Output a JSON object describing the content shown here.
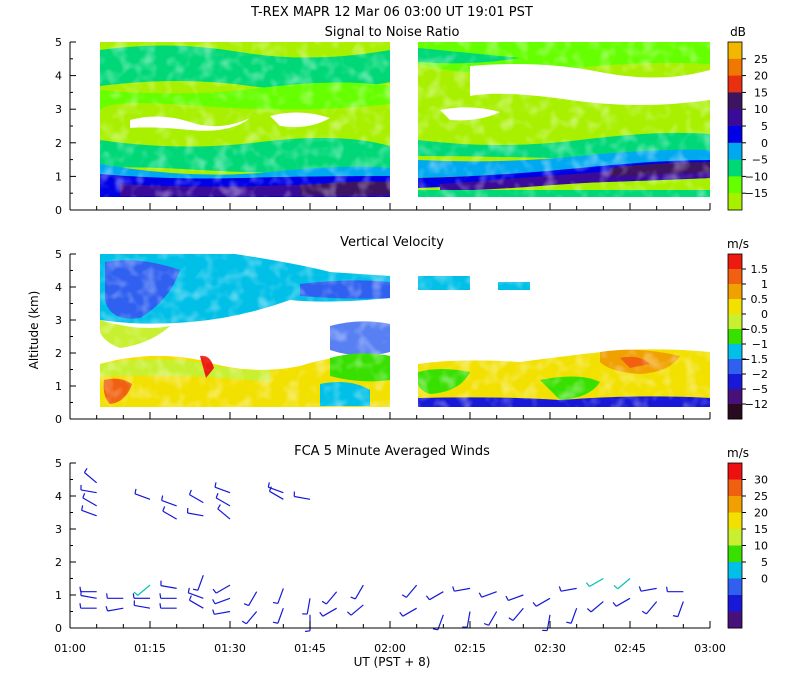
{
  "header": {
    "title_left": "T-REX   MAPR 12 Mar 06   03:00 UT   19:01   PST"
  },
  "x_axis": {
    "label": "UT  (PST + 8)",
    "ticks": [
      "01:00",
      "01:15",
      "01:30",
      "01:45",
      "02:00",
      "02:15",
      "02:30",
      "02:45",
      "03:00"
    ]
  },
  "y_axis": {
    "label": "Altitude (km)",
    "ticks": [
      "0",
      "1",
      "2",
      "3",
      "4",
      "5"
    ]
  },
  "chart_data": [
    {
      "type": "heatmap",
      "title": "Signal to Noise Ratio",
      "unit": "dB",
      "xlabel": "UT  (PST + 8)",
      "ylabel": "Altitude (km)",
      "xlim": [
        "01:00",
        "03:00"
      ],
      "ylim": [
        0,
        5
      ],
      "data_gap": [
        "01:59",
        "02:05"
      ],
      "colorbar": {
        "ticks": [
          "25",
          "20",
          "15",
          "10",
          "5",
          "0",
          "−5",
          "−10",
          "−15"
        ],
        "colors": [
          "#f2b800",
          "#f07800",
          "#e83010",
          "#3c1460",
          "#3a0a9a",
          "#0000e6",
          "#00a8f0",
          "#00d878",
          "#66ff00",
          "#a8f000"
        ]
      },
      "layers": [
        {
          "alt_from": 0.3,
          "alt_to": 0.6,
          "level": "5"
        },
        {
          "alt_from": 0.6,
          "alt_to": 1.2,
          "level": "0"
        },
        {
          "alt_from": 1.2,
          "alt_to": 1.8,
          "level": "−5"
        },
        {
          "alt_from": 1.8,
          "alt_to": 3.3,
          "level": "−10"
        },
        {
          "alt_from": 3.3,
          "alt_to": 5.0,
          "level": "−5"
        }
      ]
    },
    {
      "type": "heatmap",
      "title": "Vertical Velocity",
      "unit": "m/s",
      "xlabel": "UT  (PST + 8)",
      "ylabel": "Altitude (km)",
      "xlim": [
        "01:00",
        "03:00"
      ],
      "ylim": [
        0,
        5
      ],
      "data_gap": [
        "01:59",
        "02:05"
      ],
      "colorbar": {
        "ticks": [
          "1.5",
          "1",
          "0.5",
          "0",
          "−0.5",
          "−1",
          "−1.5",
          "−2",
          "−5",
          "−12"
        ],
        "colors": [
          "#ee1a10",
          "#f06010",
          "#f0a000",
          "#f2e000",
          "#c8f030",
          "#38e000",
          "#00c0e8",
          "#3060f0",
          "#1818d8",
          "#48107a",
          "#2a0a20"
        ]
      },
      "layers": [
        {
          "alt_from": 0.3,
          "alt_to": 1.7,
          "level": "0"
        },
        {
          "alt_from": 2.7,
          "alt_to": 5.0,
          "level": "−1.5"
        }
      ]
    },
    {
      "type": "scatter",
      "title": "FCA 5 Minute Averaged Winds",
      "unit": "m/s",
      "xlabel": "UT  (PST + 8)",
      "ylabel": "Altitude (km)",
      "xlim": [
        "01:00",
        "03:00"
      ],
      "ylim": [
        0,
        5
      ],
      "colorbar": {
        "ticks": [
          "30",
          "25",
          "20",
          "15",
          "10",
          "5",
          "0"
        ],
        "colors": [
          "#ee1010",
          "#f06010",
          "#f0a000",
          "#f2e000",
          "#c8f030",
          "#38e000",
          "#00c0e8",
          "#3060f0",
          "#1818d8",
          "#48107a"
        ]
      },
      "barbs": [
        {
          "t": "01:05",
          "alt": 3.4,
          "dir": 290,
          "spd": 6
        },
        {
          "t": "01:05",
          "alt": 3.7,
          "dir": 300,
          "spd": 6
        },
        {
          "t": "01:05",
          "alt": 4.1,
          "dir": 280,
          "spd": 5
        },
        {
          "t": "01:05",
          "alt": 4.4,
          "dir": 310,
          "spd": 6
        },
        {
          "t": "01:15",
          "alt": 3.9,
          "dir": 290,
          "spd": 5
        },
        {
          "t": "01:20",
          "alt": 3.3,
          "dir": 300,
          "spd": 6
        },
        {
          "t": "01:20",
          "alt": 3.7,
          "dir": 290,
          "spd": 5
        },
        {
          "t": "01:25",
          "alt": 3.4,
          "dir": 280,
          "spd": 5
        },
        {
          "t": "01:25",
          "alt": 3.8,
          "dir": 300,
          "spd": 6
        },
        {
          "t": "01:30",
          "alt": 3.3,
          "dir": 310,
          "spd": 6
        },
        {
          "t": "01:30",
          "alt": 3.7,
          "dir": 300,
          "spd": 5
        },
        {
          "t": "01:30",
          "alt": 4.1,
          "dir": 290,
          "spd": 5
        },
        {
          "t": "01:40",
          "alt": 3.9,
          "dir": 300,
          "spd": 5
        },
        {
          "t": "01:40",
          "alt": 4.1,
          "dir": 290,
          "spd": 5
        },
        {
          "t": "01:45",
          "alt": 3.9,
          "dir": 280,
          "spd": 4
        },
        {
          "t": "01:05",
          "alt": 0.6,
          "dir": 270,
          "spd": 5
        },
        {
          "t": "01:05",
          "alt": 0.9,
          "dir": 280,
          "spd": 5
        },
        {
          "t": "01:05",
          "alt": 1.1,
          "dir": 270,
          "spd": 5
        },
        {
          "t": "01:10",
          "alt": 0.6,
          "dir": 260,
          "spd": 5
        },
        {
          "t": "01:10",
          "alt": 0.9,
          "dir": 270,
          "spd": 5
        },
        {
          "t": "01:15",
          "alt": 0.6,
          "dir": 280,
          "spd": 5
        },
        {
          "t": "01:15",
          "alt": 0.9,
          "dir": 270,
          "spd": 5
        },
        {
          "t": "01:15",
          "alt": 1.3,
          "dir": 230,
          "spd": 10
        },
        {
          "t": "01:20",
          "alt": 0.6,
          "dir": 270,
          "spd": 5
        },
        {
          "t": "01:20",
          "alt": 0.9,
          "dir": 270,
          "spd": 5
        },
        {
          "t": "01:20",
          "alt": 1.2,
          "dir": 280,
          "spd": 5
        },
        {
          "t": "01:25",
          "alt": 1.6,
          "dir": 200,
          "spd": 6
        },
        {
          "t": "01:25",
          "alt": 0.6,
          "dir": 300,
          "spd": 5
        },
        {
          "t": "01:25",
          "alt": 0.9,
          "dir": 290,
          "spd": 5
        },
        {
          "t": "01:30",
          "alt": 0.5,
          "dir": 260,
          "spd": 5
        },
        {
          "t": "01:30",
          "alt": 0.9,
          "dir": 250,
          "spd": 5
        },
        {
          "t": "01:30",
          "alt": 1.3,
          "dir": 240,
          "spd": 6
        },
        {
          "t": "01:35",
          "alt": 0.5,
          "dir": 220,
          "spd": 5
        },
        {
          "t": "01:35",
          "alt": 1.1,
          "dir": 210,
          "spd": 6
        },
        {
          "t": "01:40",
          "alt": 0.6,
          "dir": 200,
          "spd": 5
        },
        {
          "t": "01:40",
          "alt": 1.2,
          "dir": 200,
          "spd": 5
        },
        {
          "t": "01:45",
          "alt": 0.4,
          "dir": 180,
          "spd": 5
        },
        {
          "t": "01:45",
          "alt": 0.9,
          "dir": 190,
          "spd": 5
        },
        {
          "t": "01:50",
          "alt": 0.6,
          "dir": 240,
          "spd": 5
        },
        {
          "t": "01:50",
          "alt": 1.1,
          "dir": 220,
          "spd": 6
        },
        {
          "t": "01:55",
          "alt": 0.7,
          "dir": 230,
          "spd": 5
        },
        {
          "t": "01:55",
          "alt": 1.3,
          "dir": 210,
          "spd": 6
        },
        {
          "t": "02:05",
          "alt": 0.6,
          "dir": 240,
          "spd": 5
        },
        {
          "t": "02:05",
          "alt": 1.3,
          "dir": 220,
          "spd": 5
        },
        {
          "t": "02:10",
          "alt": 0.4,
          "dir": 200,
          "spd": 5
        },
        {
          "t": "02:10",
          "alt": 1.1,
          "dir": 240,
          "spd": 5
        },
        {
          "t": "02:15",
          "alt": 0.5,
          "dir": 190,
          "spd": 5
        },
        {
          "t": "02:15",
          "alt": 1.2,
          "dir": 260,
          "spd": 5
        },
        {
          "t": "02:20",
          "alt": 0.5,
          "dir": 210,
          "spd": 5
        },
        {
          "t": "02:20",
          "alt": 1.1,
          "dir": 250,
          "spd": 5
        },
        {
          "t": "02:25",
          "alt": 0.6,
          "dir": 220,
          "spd": 5
        },
        {
          "t": "02:25",
          "alt": 1.0,
          "dir": 250,
          "spd": 5
        },
        {
          "t": "02:30",
          "alt": 0.4,
          "dir": 190,
          "spd": 5
        },
        {
          "t": "02:30",
          "alt": 0.9,
          "dir": 240,
          "spd": 5
        },
        {
          "t": "02:35",
          "alt": 0.6,
          "dir": 200,
          "spd": 5
        },
        {
          "t": "02:35",
          "alt": 1.2,
          "dir": 260,
          "spd": 5
        },
        {
          "t": "02:40",
          "alt": 0.8,
          "dir": 230,
          "spd": 5
        },
        {
          "t": "02:40",
          "alt": 1.5,
          "dir": 240,
          "spd": 10
        },
        {
          "t": "02:45",
          "alt": 0.9,
          "dir": 240,
          "spd": 5
        },
        {
          "t": "02:45",
          "alt": 1.5,
          "dir": 230,
          "spd": 12
        },
        {
          "t": "02:50",
          "alt": 0.8,
          "dir": 220,
          "spd": 5
        },
        {
          "t": "02:50",
          "alt": 1.2,
          "dir": 260,
          "spd": 5
        },
        {
          "t": "02:55",
          "alt": 0.8,
          "dir": 200,
          "spd": 5
        },
        {
          "t": "02:55",
          "alt": 1.1,
          "dir": 270,
          "spd": 5
        }
      ]
    }
  ]
}
